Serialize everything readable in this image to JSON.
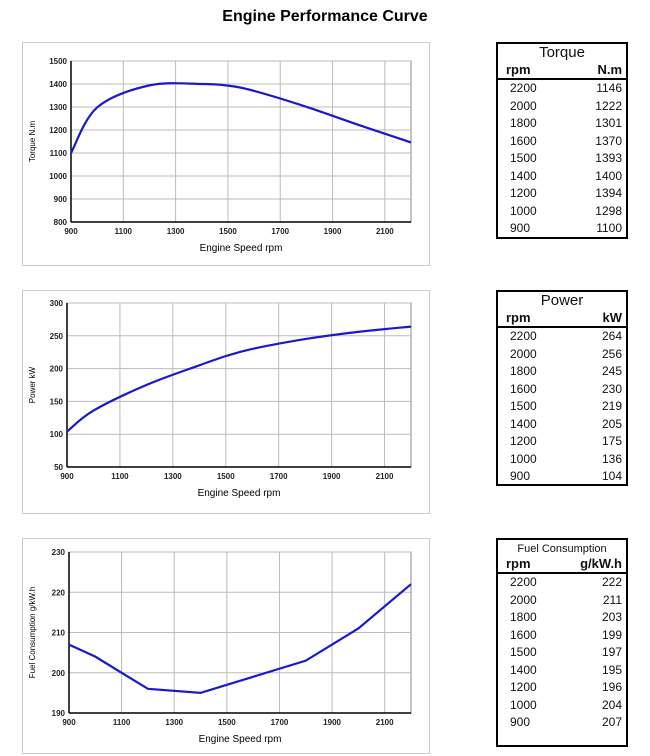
{
  "title": "Engine Performance Curve",
  "chart_data": [
    {
      "type": "line",
      "xlabel": "Engine Speed rpm",
      "ylabel": "Torque N.m",
      "xlim": [
        900,
        2200
      ],
      "ylim": [
        800,
        1500
      ],
      "xticks": [
        900,
        1100,
        1300,
        1500,
        1700,
        1900,
        2100
      ],
      "yticks": [
        800,
        900,
        1000,
        1100,
        1200,
        1300,
        1400,
        1500
      ],
      "grid": true,
      "color": "#1a1acc",
      "smooth": true,
      "x": [
        900,
        1000,
        1200,
        1400,
        1500,
        1600,
        1800,
        2000,
        2200
      ],
      "y": [
        1100,
        1298,
        1394,
        1400,
        1393,
        1370,
        1301,
        1222,
        1146
      ]
    },
    {
      "type": "line",
      "xlabel": "Engine Speed rpm",
      "ylabel": "Power kW",
      "xlim": [
        900,
        2200
      ],
      "ylim": [
        50,
        300
      ],
      "xticks": [
        900,
        1100,
        1300,
        1500,
        1700,
        1900,
        2100
      ],
      "yticks": [
        50,
        100,
        150,
        200,
        250,
        300
      ],
      "grid": true,
      "color": "#1a1acc",
      "smooth": true,
      "x": [
        900,
        1000,
        1200,
        1400,
        1500,
        1600,
        1800,
        2000,
        2200
      ],
      "y": [
        104,
        136,
        175,
        205,
        219,
        230,
        245,
        256,
        264
      ]
    },
    {
      "type": "line",
      "xlabel": "Engine Speed rpm",
      "ylabel": "Fuel Consumption g/kW.h",
      "xlim": [
        900,
        2200
      ],
      "ylim": [
        190,
        230
      ],
      "xticks": [
        900,
        1100,
        1300,
        1500,
        1700,
        1900,
        2100
      ],
      "yticks": [
        190,
        200,
        210,
        220,
        230
      ],
      "grid": true,
      "color": "#1a1acc",
      "smooth": false,
      "x": [
        900,
        1000,
        1200,
        1400,
        1500,
        1600,
        1800,
        2000,
        2200
      ],
      "y": [
        207,
        204,
        196,
        195,
        197,
        199,
        203,
        211,
        222
      ]
    }
  ],
  "tables": [
    {
      "title": "Torque",
      "col1": "rpm",
      "col2": "N.m",
      "rows": [
        [
          "2200",
          "1146"
        ],
        [
          "2000",
          "1222"
        ],
        [
          "1800",
          "1301"
        ],
        [
          "1600",
          "1370"
        ],
        [
          "1500",
          "1393"
        ],
        [
          "1400",
          "1400"
        ],
        [
          "1200",
          "1394"
        ],
        [
          "1000",
          "1298"
        ],
        [
          "900",
          "1100"
        ]
      ]
    },
    {
      "title": "Power",
      "col1": "rpm",
      "col2": "kW",
      "rows": [
        [
          "2200",
          "264"
        ],
        [
          "2000",
          "256"
        ],
        [
          "1800",
          "245"
        ],
        [
          "1600",
          "230"
        ],
        [
          "1500",
          "219"
        ],
        [
          "1400",
          "205"
        ],
        [
          "1200",
          "175"
        ],
        [
          "1000",
          "136"
        ],
        [
          "900",
          "104"
        ]
      ]
    },
    {
      "title": "Fuel Consumption",
      "col1": "rpm",
      "col2": "g/kW.h",
      "rows": [
        [
          "2200",
          "222"
        ],
        [
          "2000",
          "211"
        ],
        [
          "1800",
          "203"
        ],
        [
          "1600",
          "199"
        ],
        [
          "1500",
          "197"
        ],
        [
          "1400",
          "195"
        ],
        [
          "1200",
          "196"
        ],
        [
          "1000",
          "204"
        ],
        [
          "900",
          "207"
        ]
      ]
    }
  ]
}
